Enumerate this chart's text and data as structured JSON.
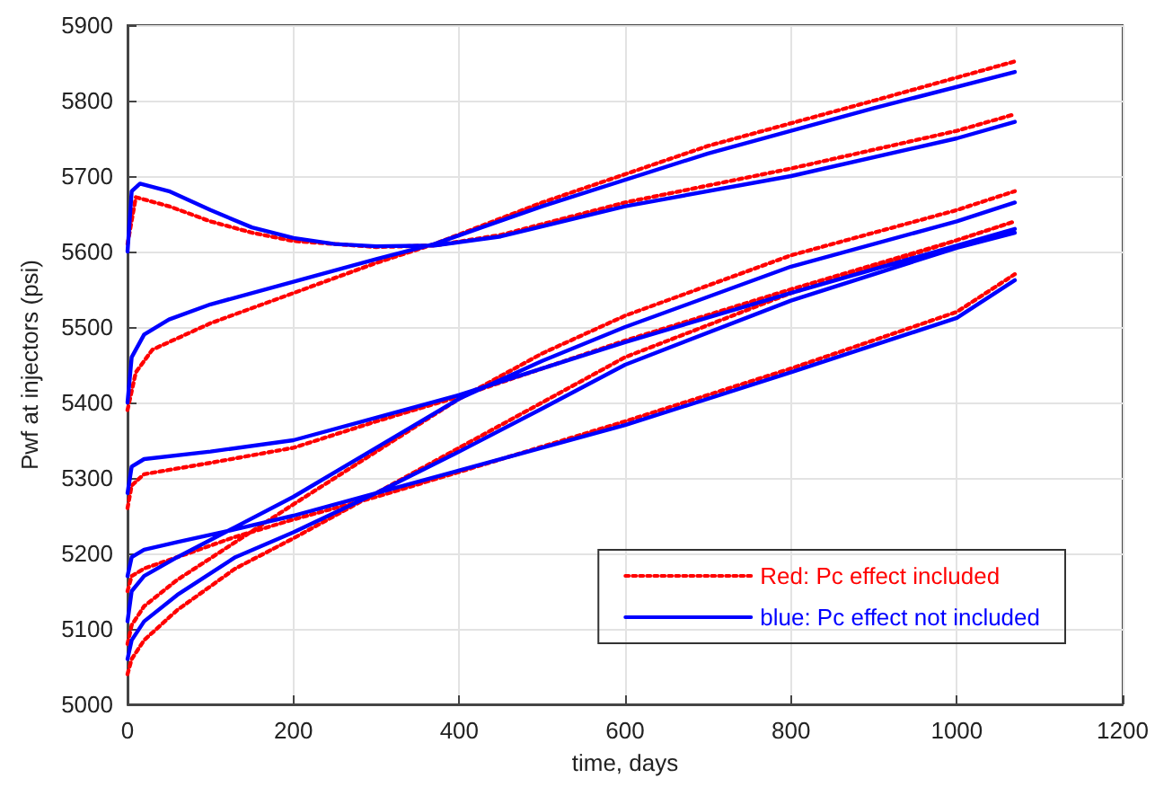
{
  "chart_data": {
    "type": "line",
    "xlabel": "time, days",
    "ylabel": "Pwf at injectors (psi)",
    "xlim": [
      0,
      1200
    ],
    "xticks": [
      0,
      200,
      400,
      600,
      800,
      1000,
      1200
    ],
    "ylim": [
      5000,
      5900
    ],
    "yticks": [
      5000,
      5100,
      5200,
      5300,
      5400,
      5500,
      5600,
      5700,
      5800,
      5900
    ],
    "grid": true,
    "legend": "bottom right",
    "marker": "none",
    "series": [
      {
        "name": "Red: Pc effect included",
        "color": "#ff0000",
        "line_style": "dotted",
        "x": [
          0,
          10,
          50,
          100,
          150,
          200,
          300,
          370,
          450,
          600,
          800,
          1000,
          1070,
          null,
          0,
          10,
          30,
          100,
          200,
          300,
          370,
          500,
          700,
          900,
          1070,
          null,
          0,
          5,
          20,
          100,
          200,
          300,
          400,
          500,
          600,
          800,
          1000,
          1070,
          null,
          0,
          5,
          20,
          60,
          130,
          200,
          300,
          400,
          600,
          800,
          1000,
          1070,
          null,
          0,
          5,
          20,
          60,
          130,
          200,
          300,
          400,
          500,
          600,
          800,
          1000,
          1070,
          null,
          0,
          5,
          20,
          60,
          130,
          200,
          300,
          400,
          500,
          600,
          800,
          1000,
          1070
        ],
        "values": [
          5610,
          5672,
          5660,
          5640,
          5625,
          5614,
          5606,
          5608,
          5622,
          5665,
          5710,
          5760,
          5782,
          null,
          5390,
          5440,
          5470,
          5505,
          5545,
          5585,
          5610,
          5665,
          5740,
          5800,
          5852,
          null,
          5260,
          5290,
          5305,
          5320,
          5340,
          5375,
          5408,
          5445,
          5482,
          5550,
          5615,
          5640,
          null,
          5150,
          5170,
          5180,
          5195,
          5222,
          5245,
          5275,
          5308,
          5375,
          5445,
          5520,
          5570,
          null,
          5080,
          5105,
          5130,
          5165,
          5215,
          5265,
          5335,
          5405,
          5465,
          5515,
          5595,
          5655,
          5680,
          null,
          5040,
          5060,
          5085,
          5125,
          5180,
          5220,
          5280,
          5340,
          5400,
          5460,
          5545,
          5615,
          5640
        ]
      },
      {
        "name": "blue: Pc effect not included",
        "color": "#0000ff",
        "line_style": "solid",
        "x": [
          0,
          5,
          15,
          50,
          100,
          150,
          200,
          250,
          300,
          370,
          450,
          600,
          800,
          1000,
          1070,
          null,
          0,
          5,
          20,
          50,
          100,
          200,
          300,
          370,
          500,
          700,
          900,
          1070,
          null,
          0,
          5,
          20,
          100,
          200,
          300,
          400,
          500,
          600,
          800,
          1000,
          1070,
          null,
          0,
          5,
          20,
          60,
          130,
          200,
          300,
          400,
          600,
          800,
          1000,
          1070,
          null,
          0,
          5,
          20,
          60,
          130,
          200,
          300,
          400,
          500,
          600,
          800,
          1000,
          1070,
          null,
          0,
          5,
          20,
          60,
          130,
          200,
          300,
          400,
          500,
          600,
          800,
          1000,
          1070
        ],
        "values": [
          5600,
          5680,
          5690,
          5680,
          5655,
          5632,
          5618,
          5610,
          5607,
          5608,
          5620,
          5660,
          5700,
          5750,
          5772,
          null,
          5400,
          5460,
          5490,
          5510,
          5530,
          5560,
          5590,
          5610,
          5660,
          5730,
          5790,
          5838,
          null,
          5280,
          5315,
          5325,
          5335,
          5350,
          5380,
          5410,
          5445,
          5480,
          5545,
          5608,
          5630,
          null,
          5170,
          5195,
          5205,
          5215,
          5232,
          5250,
          5280,
          5310,
          5370,
          5440,
          5512,
          5562,
          null,
          5110,
          5150,
          5170,
          5195,
          5235,
          5275,
          5340,
          5405,
          5455,
          5500,
          5580,
          5640,
          5665,
          null,
          5060,
          5085,
          5110,
          5145,
          5195,
          5228,
          5280,
          5335,
          5392,
          5450,
          5535,
          5605,
          5625
        ]
      }
    ]
  }
}
